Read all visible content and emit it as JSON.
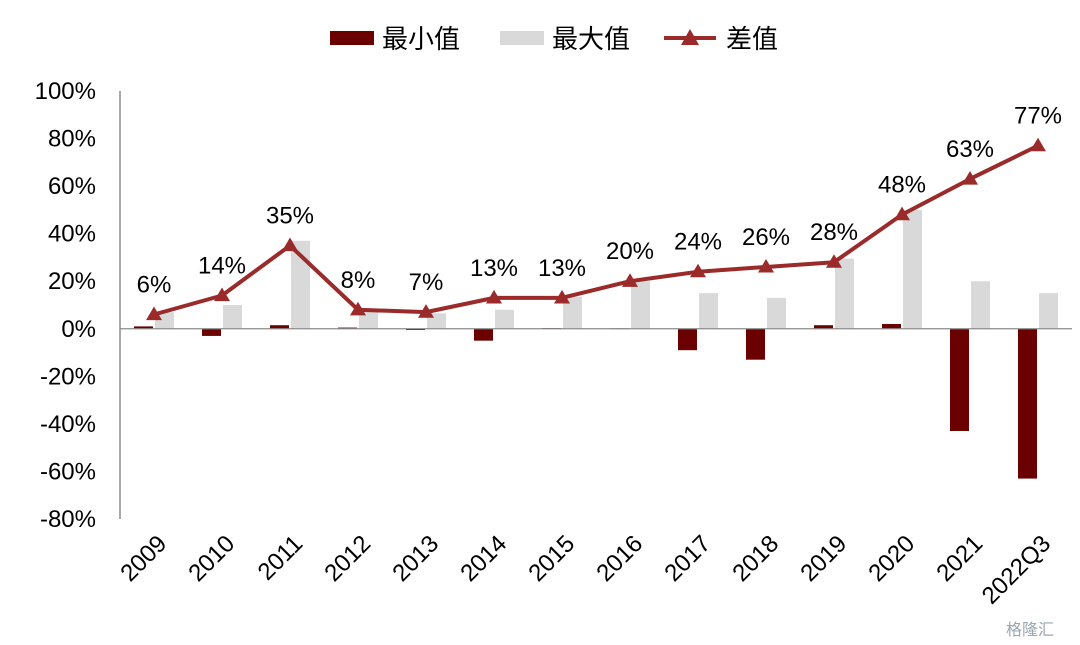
{
  "chart_data": {
    "type": "bar",
    "categories": [
      "2009",
      "2010",
      "2011",
      "2012",
      "2013",
      "2014",
      "2015",
      "2016",
      "2017",
      "2018",
      "2019",
      "2020",
      "2021",
      "2022Q3"
    ],
    "series": [
      {
        "name": "最小值",
        "kind": "bar",
        "color": "#6b0000",
        "values": [
          1,
          -3,
          1.5,
          0.5,
          -0.5,
          -5,
          0.3,
          0.2,
          -9,
          -13,
          1.5,
          2,
          -43,
          -63
        ]
      },
      {
        "name": "最大值",
        "kind": "bar",
        "color": "#d9d9d9",
        "values": [
          7,
          10,
          37,
          8,
          6.5,
          8,
          13.5,
          20,
          15,
          13,
          29.5,
          50,
          20,
          15
        ]
      },
      {
        "name": "差值",
        "kind": "line",
        "color": "#9b2a2a",
        "values": [
          6,
          14,
          35,
          8,
          7,
          13,
          13,
          20,
          24,
          26,
          28,
          48,
          63,
          77
        ],
        "labels": [
          "6%",
          "14%",
          "35%",
          "8%",
          "7%",
          "13%",
          "13%",
          "20%",
          "24%",
          "26%",
          "28%",
          "48%",
          "63%",
          "77%"
        ]
      }
    ],
    "ylim": [
      -80,
      100
    ],
    "yticks": [
      100,
      80,
      60,
      40,
      20,
      0,
      -20,
      -40,
      -60,
      -80
    ],
    "ytick_labels": [
      "100%",
      "80%",
      "60%",
      "40%",
      "20%",
      "0%",
      "-20%",
      "-40%",
      "-60%",
      "-80%"
    ],
    "legend": "top",
    "grid": false,
    "title": "",
    "xlabel": "",
    "ylabel": ""
  },
  "watermark": "格隆汇"
}
